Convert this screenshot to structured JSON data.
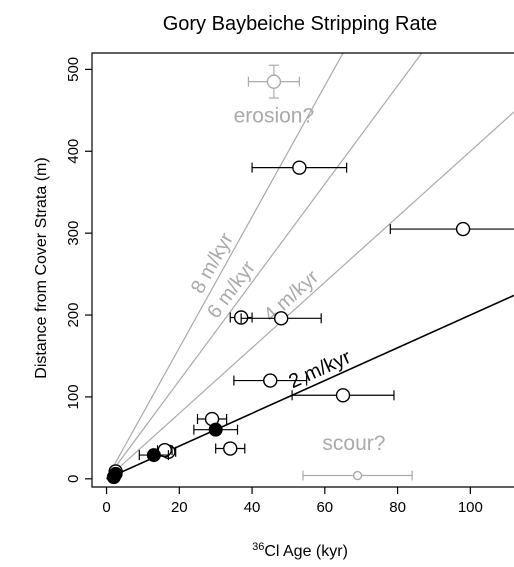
{
  "chart_data": {
    "type": "scatter",
    "title": "Gory Baybeiche Stripping Rate",
    "xlabel": {
      "sup": "36",
      "text": "Cl Age (kyr)"
    },
    "ylabel": "Distance from Cover Strata (m)",
    "xlim": [
      -4,
      112
    ],
    "ylim": [
      -10,
      520
    ],
    "xticks": [
      0,
      20,
      40,
      60,
      80,
      100
    ],
    "yticks": [
      0,
      100,
      200,
      300,
      400,
      500
    ],
    "grid": false,
    "colors": {
      "primary": "#000000",
      "muted": "#aaaaaa",
      "open_fill": "#ffffff"
    },
    "rate_lines": [
      {
        "label": "8 m/kyr",
        "slope": 8,
        "color": "#aaaaaa"
      },
      {
        "label": "6 m/kyr",
        "slope": 6,
        "color": "#aaaaaa"
      },
      {
        "label": "4 m/kyr",
        "slope": 4,
        "color": "#aaaaaa"
      },
      {
        "label": "2 m/kyr",
        "slope": 2,
        "color": "#000000"
      }
    ],
    "annotations": [
      {
        "text": "erosion?",
        "x": 46,
        "y": 435,
        "color": "#aaaaaa"
      },
      {
        "text": "scour?",
        "x": 68,
        "y": 35,
        "color": "#aaaaaa"
      }
    ],
    "series": [
      {
        "marker": "open",
        "points": [
          {
            "x": 53,
            "y": 380,
            "xerr": 13
          },
          {
            "x": 98,
            "y": 305,
            "xerr": 20
          },
          {
            "x": 37,
            "y": 197,
            "xerr": 3
          },
          {
            "x": 48,
            "y": 196,
            "xerr": 11
          },
          {
            "x": 45,
            "y": 120,
            "xerr": 10
          },
          {
            "x": 65,
            "y": 102,
            "xerr": 14
          },
          {
            "x": 29,
            "y": 73,
            "xerr": 4
          },
          {
            "x": 34,
            "y": 37,
            "xerr": 4
          },
          {
            "x": 17,
            "y": 33,
            "xerr": 2
          },
          {
            "x": 16,
            "y": 35,
            "xerr": 2
          },
          {
            "x": 2.5,
            "y": 9,
            "xerr": 0
          }
        ]
      },
      {
        "marker": "filled",
        "points": [
          {
            "x": 30,
            "y": 60,
            "xerr": 6
          },
          {
            "x": 13,
            "y": 29,
            "xerr": 4
          },
          {
            "x": 2,
            "y": 2,
            "xerr": 0
          },
          {
            "x": 2.5,
            "y": 6,
            "xerr": 0
          }
        ]
      },
      {
        "marker": "outlier-open",
        "points": [
          {
            "x": 46,
            "y": 485,
            "xerr": 7,
            "yerr": 20
          }
        ]
      },
      {
        "marker": "outlier-small",
        "points": [
          {
            "x": 69,
            "y": 4,
            "xerr": 15
          }
        ]
      }
    ]
  }
}
